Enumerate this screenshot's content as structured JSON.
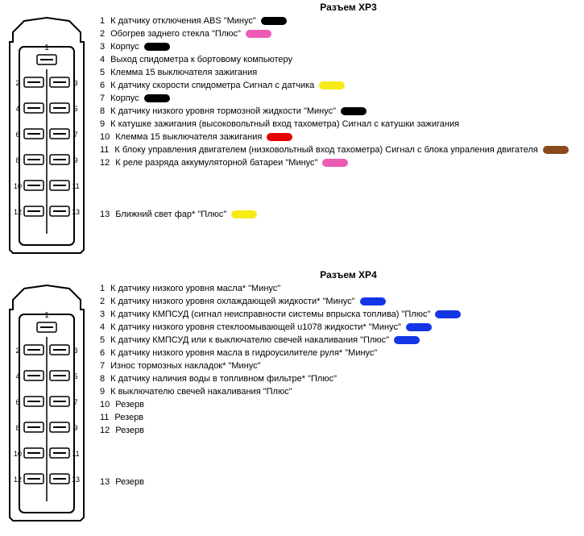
{
  "sections": [
    {
      "title": "Разъем ХР3",
      "pins": [
        {
          "num": "1",
          "text": "К датчику отключения АВS \"Минус\"",
          "colors": [
            "#000000"
          ]
        },
        {
          "num": "2",
          "text": "Обогрев заднего стекла \"Плюс\"",
          "colors": [
            "#ec5bb4"
          ]
        },
        {
          "num": "3",
          "text": "Корпус",
          "colors": [
            "#000000"
          ]
        },
        {
          "num": "4",
          "text": "Выход спидометра к бортовому компьютеру",
          "colors": []
        },
        {
          "num": "5",
          "text": "Клемма 15 выключателя зажигания",
          "colors": []
        },
        {
          "num": "6",
          "text": "К датчику скорости спидометра Сигнал с датчика",
          "colors": [
            "#f7ea17"
          ]
        },
        {
          "num": "7",
          "text": "Корпус",
          "colors": [
            "#000000"
          ]
        },
        {
          "num": "8",
          "text": "К датчику низкого уровня тормозной жидкости \"Минус\"",
          "colors": [
            "#000000"
          ]
        },
        {
          "num": "9",
          "text": "К катушке зажигания (высоковольтный вход тахометра) Сигнал с катушки зажигания",
          "colors": []
        },
        {
          "num": "10",
          "text": "Клемма 15 выключателя зажигания",
          "colors": [
            "#e60000"
          ]
        },
        {
          "num": "11",
          "text": "К блоку управления двигателем (низковольтный вход тахометра) Сигнал с блока упраления двигателя",
          "colors": [
            "#8a4a1c"
          ]
        },
        {
          "num": "12",
          "text": "К реле разряда аккумуляторной батареи \"Минус\"",
          "colors": [
            "#ec5bb4"
          ]
        }
      ],
      "extraGapBefore13": true,
      "pin13": {
        "num": "13",
        "text": "Ближний свет фар* \"Плюс\"",
        "colors": [
          "#f7ea17"
        ]
      }
    },
    {
      "title": "Разъем ХР4",
      "pins": [
        {
          "num": "1",
          "text": "К датчику низкого уровня масла* \"Минус\"",
          "colors": []
        },
        {
          "num": "2",
          "text": "К датчику низкого уровня охлаждающей жидкости* \"Минус\"",
          "colors": [
            "#1435e6"
          ]
        },
        {
          "num": "3",
          "text": "К датчику КМПСУД (сигнал неисправности системы впрыска топлива) \"Плюс\"",
          "colors": [
            "#1435e6"
          ]
        },
        {
          "num": "4",
          "text": "К датчику низкого уровня стеклоомывающей u1078 жидкости* \"Минус\"",
          "colors": [
            "#1435e6"
          ]
        },
        {
          "num": "5",
          "text": "К датчику КМПСУД или к выключателю свечей накаливания \"Плюс\"",
          "colors": [
            "#1435e6"
          ]
        },
        {
          "num": "6",
          "text": "К датчику низкого уровня масла в гидроусилителе руля* \"Минус\"",
          "colors": []
        },
        {
          "num": "7",
          "text": "Износ тормозных накладок* \"Минус\"",
          "colors": []
        },
        {
          "num": "8",
          "text": "К датчику наличия воды в топливном фильтре* \"Плюс\"",
          "colors": []
        },
        {
          "num": "9",
          "text": "К выключателю свечей накаливания \"Плюс\"",
          "colors": []
        },
        {
          "num": "10",
          "text": "Резерв",
          "colors": []
        },
        {
          "num": "11",
          "text": "Резерв",
          "colors": []
        },
        {
          "num": "12",
          "text": "Резерв",
          "colors": []
        }
      ],
      "extraGapBefore13": true,
      "pin13": {
        "num": "13",
        "text": "Резерв",
        "colors": []
      }
    }
  ],
  "connector": {
    "stroke": "#000000",
    "fill": "#ffffff",
    "pinPairs": [
      [
        2,
        3
      ],
      [
        4,
        5
      ],
      [
        6,
        7
      ],
      [
        8,
        9
      ],
      [
        10,
        11
      ],
      [
        12,
        13
      ]
    ],
    "pin1Label": "1"
  },
  "styling": {
    "swatch_width": 32,
    "swatch_height": 10,
    "swatch_radius": 6,
    "font_size": 11,
    "line_height": 16,
    "title_font_size": 12,
    "background": "#ffffff",
    "text_color": "#000000"
  }
}
